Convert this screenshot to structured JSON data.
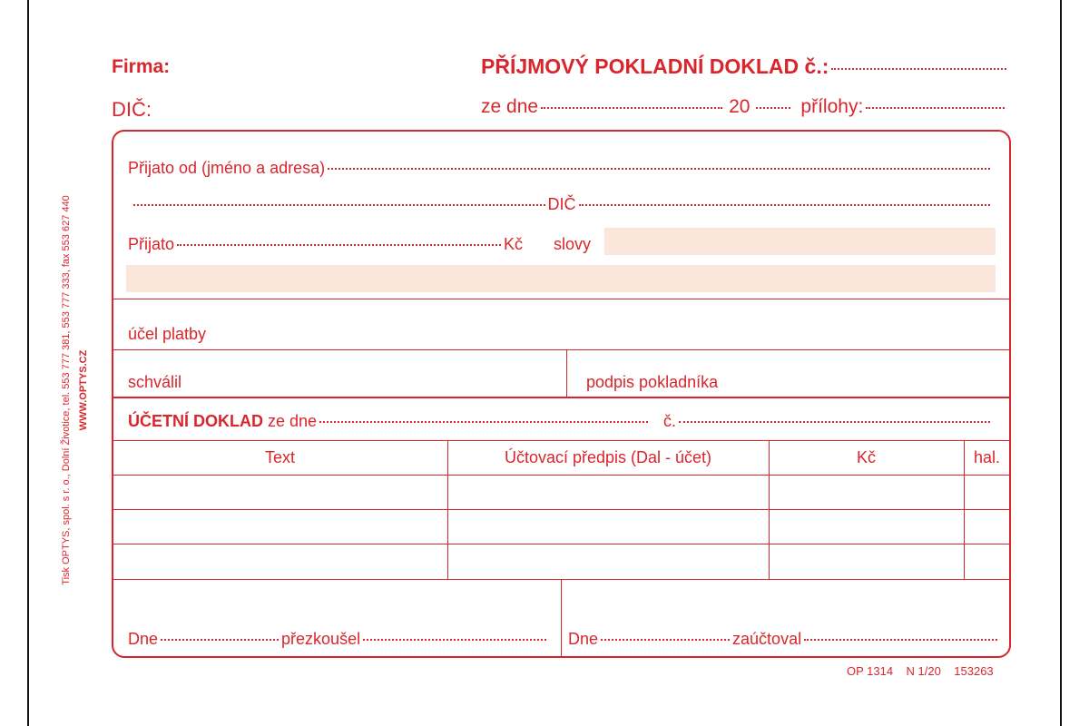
{
  "header": {
    "firma_label": "Firma:",
    "title": "PŘÍJMOVÝ POKLADNÍ DOKLAD č.:",
    "dic_label": "DIČ:",
    "ze_dne_label": "ze dne",
    "year_label": "20",
    "prilohy_label": "přílohy:"
  },
  "receipt": {
    "prijato_od_label": "Přijato od  (jméno a adresa)",
    "dic_label": "DIČ",
    "prijato_label": "Přijato",
    "kc_label": "Kč",
    "slovy_label": "slovy",
    "ucel_label": "účel platby",
    "schvalil_label": "schválil",
    "podpis_label": "podpis pokladníka"
  },
  "accounting": {
    "title": "ÚČETNÍ DOKLAD",
    "ze_dne_label": "ze dne",
    "cislo_label": "č.",
    "columns": [
      "Text",
      "Účtovací předpis (Dal - účet)",
      "Kč",
      "hal."
    ]
  },
  "footer": {
    "dne_label": "Dne",
    "prezkousel_label": "přezkoušel",
    "dne2_label": "Dne",
    "zauctoval_label": "zaúčtoval",
    "code": "OP 1314    N 1/20    153263"
  },
  "printer": {
    "line1": "Tisk OPTYS, spol. s r. o., Dolní Životice, tel. 553 777 381, 553 777 333, fax 553 627 440",
    "line2": "WWW.OPTYS.CZ"
  },
  "colors": {
    "ink": "#d8262c",
    "fill": "#fbe6dc"
  }
}
